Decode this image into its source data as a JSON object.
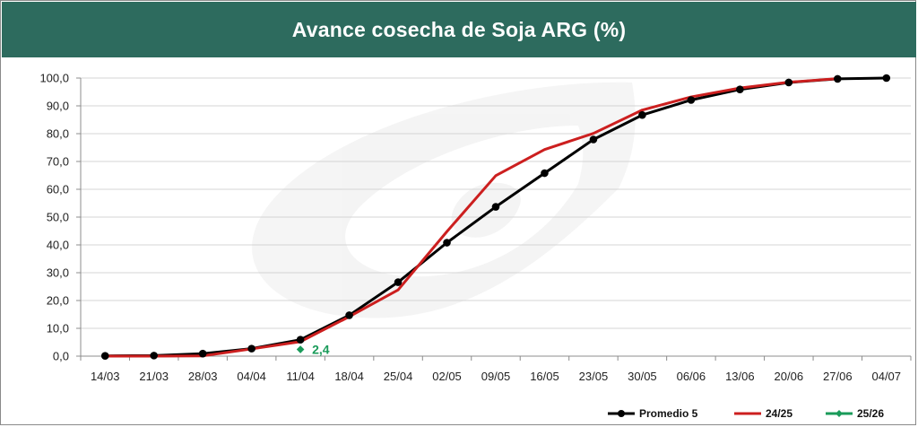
{
  "chart_data": {
    "type": "line",
    "title": "Avance cosecha de Soja ARG (%)",
    "xlabel": "",
    "ylabel": "",
    "ylim": [
      0,
      100
    ],
    "y_ticks": [
      "0,0",
      "10,0",
      "20,0",
      "30,0",
      "40,0",
      "50,0",
      "60,0",
      "70,0",
      "80,0",
      "90,0",
      "100,0"
    ],
    "categories": [
      "14/03",
      "21/03",
      "28/03",
      "04/04",
      "11/04",
      "18/04",
      "25/04",
      "02/05",
      "09/05",
      "16/05",
      "23/05",
      "30/05",
      "06/06",
      "13/06",
      "20/06",
      "27/06",
      "04/07"
    ],
    "grid": true,
    "legend_position": "bottom-right",
    "series": [
      {
        "name": "Promedio 5",
        "color": "#000000",
        "marker": "circle",
        "values": [
          0.1,
          0.2,
          0.9,
          2.7,
          5.9,
          14.7,
          26.6,
          40.8,
          53.7,
          65.8,
          77.9,
          86.7,
          92.1,
          95.9,
          98.4,
          99.7,
          100.0
        ]
      },
      {
        "name": "24/25",
        "color": "#cc1f1f",
        "marker": "none",
        "values": [
          0.0,
          0.0,
          0.1,
          2.6,
          5.2,
          14.2,
          23.8,
          44.8,
          64.9,
          74.3,
          80.1,
          88.5,
          93.2,
          96.4,
          98.5,
          99.8,
          null
        ]
      },
      {
        "name": "25/26",
        "color": "#1a9b5a",
        "marker": "diamond",
        "values": [
          null,
          null,
          null,
          null,
          2.4,
          null,
          null,
          null,
          null,
          null,
          null,
          null,
          null,
          null,
          null,
          null,
          null
        ]
      }
    ],
    "annotations": [
      {
        "series": "25/26",
        "category": "11/04",
        "text": "2,4"
      }
    ]
  }
}
